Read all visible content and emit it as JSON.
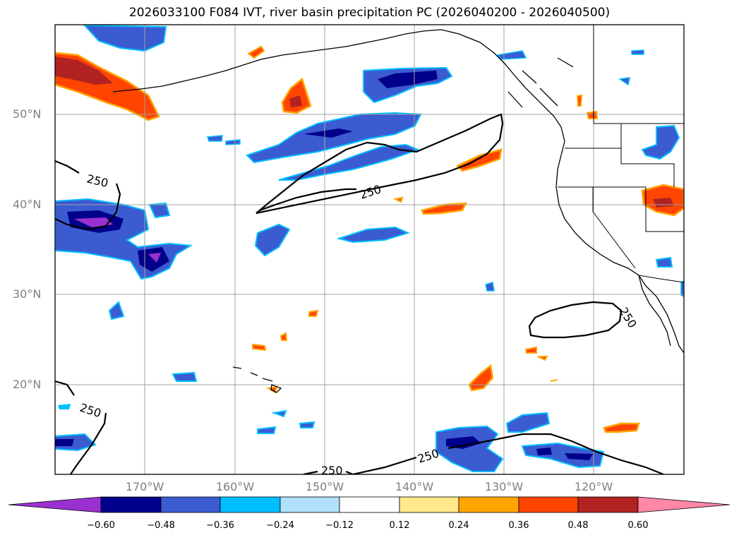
{
  "title": "2026033100 F084 IVT, river basin precipitation PC (2026040200 - 2026040500)",
  "map": {
    "lat_labels": [
      "50°N",
      "40°N",
      "30°N",
      "20°N"
    ],
    "lon_labels": [
      "170°W",
      "160°W",
      "150°W",
      "140°W",
      "130°W",
      "120°W"
    ],
    "contour_label": "250"
  },
  "colorbar": {
    "ticks": [
      "−0.60",
      "−0.48",
      "−0.36",
      "−0.24",
      "−0.12",
      "0.12",
      "0.24",
      "0.36",
      "0.48",
      "0.60"
    ],
    "colors": [
      "#9b30d0",
      "#00008b",
      "#3b5bd1",
      "#00bfff",
      "#b0e0fa",
      "#ffffff",
      "#ffe98a",
      "#ffa500",
      "#ff4500",
      "#b22222",
      "#ff88a8"
    ]
  }
}
